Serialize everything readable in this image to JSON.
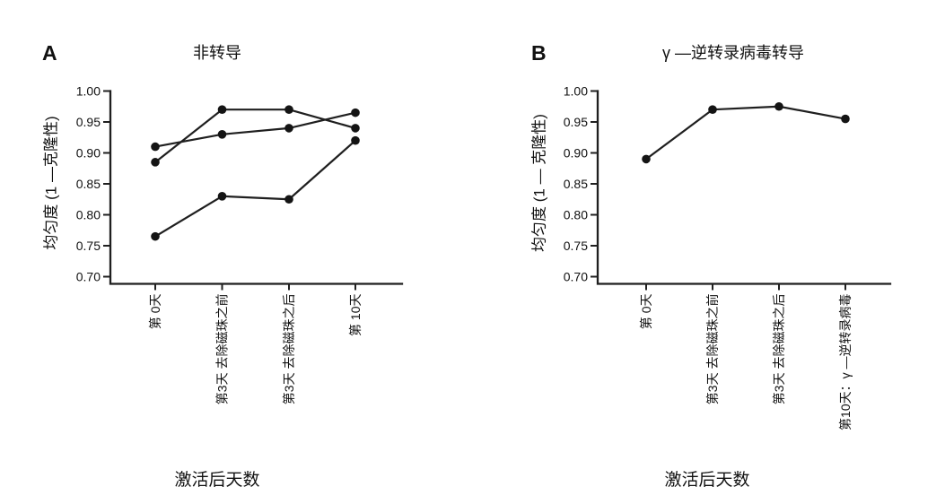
{
  "colors": {
    "background": "#ffffff",
    "axis": "#1f1f1f",
    "line": "#1f1f1f",
    "marker": "#141414",
    "text": "#111111"
  },
  "chart_data": [
    {
      "type": "line",
      "panel_label": "A",
      "title": "非转导",
      "xlabel": "激活后天数",
      "ylabel": "均匀度 (1 —克隆性)",
      "categories": [
        "第 0天",
        "第3天 去除磁珠之前",
        "第3天 去除磁珠之后",
        "第 10天"
      ],
      "ylim": [
        0.7,
        1.0
      ],
      "yticks": [
        0.7,
        0.75,
        0.8,
        0.85,
        0.9,
        0.95,
        1.0
      ],
      "grid": false,
      "legend": "none",
      "series": [
        {
          "name": "series-1",
          "values": [
            0.885,
            0.97,
            0.97,
            0.94
          ]
        },
        {
          "name": "series-2",
          "values": [
            0.91,
            0.93,
            0.94,
            0.965
          ]
        },
        {
          "name": "series-3",
          "values": [
            0.765,
            0.83,
            0.825,
            0.92
          ]
        }
      ]
    },
    {
      "type": "line",
      "panel_label": "B",
      "title": "γ —逆转录病毒转导",
      "xlabel": "激活后天数",
      "ylabel": "均匀度 (1 — 克隆性)",
      "categories": [
        "第 0天",
        "第3天 去除磁珠之前",
        "第3天 去除磁珠之后",
        "第10天：γ —逆转录病毒"
      ],
      "ylim": [
        0.7,
        1.0
      ],
      "yticks": [
        0.7,
        0.75,
        0.8,
        0.85,
        0.9,
        0.95,
        1.0
      ],
      "grid": false,
      "legend": "none",
      "series": [
        {
          "name": "series-1",
          "values": [
            0.89,
            0.97,
            0.975,
            0.955
          ]
        }
      ]
    }
  ]
}
